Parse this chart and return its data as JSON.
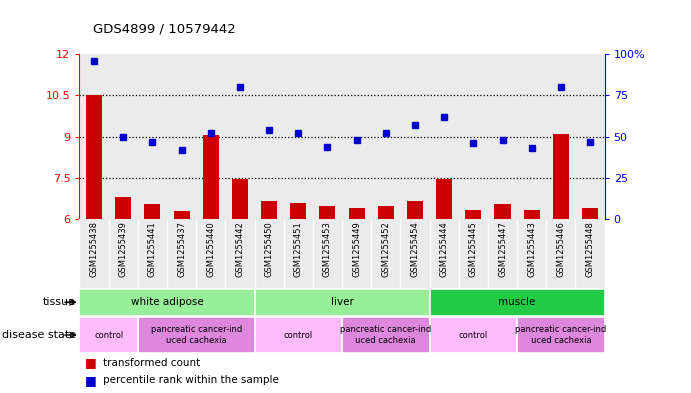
{
  "title": "GDS4899 / 10579442",
  "samples": [
    "GSM1255438",
    "GSM1255439",
    "GSM1255441",
    "GSM1255437",
    "GSM1255440",
    "GSM1255442",
    "GSM1255450",
    "GSM1255451",
    "GSM1255453",
    "GSM1255449",
    "GSM1255452",
    "GSM1255454",
    "GSM1255444",
    "GSM1255445",
    "GSM1255447",
    "GSM1255443",
    "GSM1255446",
    "GSM1255448"
  ],
  "transformed_count": [
    10.5,
    6.8,
    6.55,
    6.3,
    9.05,
    7.45,
    6.65,
    6.6,
    6.5,
    6.4,
    6.5,
    6.65,
    7.45,
    6.35,
    6.55,
    6.35,
    9.1,
    6.4
  ],
  "percentile_rank": [
    96,
    50,
    47,
    42,
    52,
    80,
    54,
    52,
    44,
    48,
    52,
    57,
    62,
    46,
    48,
    43,
    80,
    47
  ],
  "ylim_left": [
    6,
    12
  ],
  "ylim_right": [
    0,
    100
  ],
  "yticks_left": [
    6,
    7.5,
    9,
    10.5,
    12
  ],
  "yticks_right": [
    0,
    25,
    50,
    75,
    100
  ],
  "hlines": [
    7.5,
    9.0,
    10.5
  ],
  "bar_color": "#cc0000",
  "dot_color": "#0000cc",
  "col_bg_color": "#c8c8c8",
  "tissue_groups": [
    {
      "label": "white adipose",
      "start": 0,
      "end": 6,
      "color": "#99ee99"
    },
    {
      "label": "liver",
      "start": 6,
      "end": 12,
      "color": "#99ee99"
    },
    {
      "label": "muscle",
      "start": 12,
      "end": 18,
      "color": "#22cc44"
    }
  ],
  "disease_groups": [
    {
      "label": "control",
      "start": 0,
      "end": 2,
      "color": "#ffbbff"
    },
    {
      "label": "pancreatic cancer-ind\nuced cachexia",
      "start": 2,
      "end": 6,
      "color": "#dd88dd"
    },
    {
      "label": "control",
      "start": 6,
      "end": 9,
      "color": "#ffbbff"
    },
    {
      "label": "pancreatic cancer-ind\nuced cachexia",
      "start": 9,
      "end": 12,
      "color": "#dd88dd"
    },
    {
      "label": "control",
      "start": 12,
      "end": 15,
      "color": "#ffbbff"
    },
    {
      "label": "pancreatic cancer-ind\nuced cachexia",
      "start": 15,
      "end": 18,
      "color": "#dd88dd"
    }
  ],
  "tissue_label": "tissue",
  "disease_label": "disease state",
  "legend_bar_label": "transformed count",
  "legend_dot_label": "percentile rank within the sample"
}
